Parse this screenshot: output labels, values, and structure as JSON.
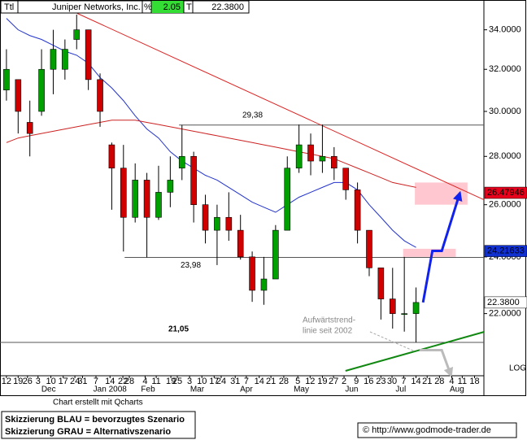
{
  "chart_data": {
    "type": "candlestick",
    "header": [
      "Ttl",
      "Juniper Networks, Inc.",
      "%",
      "2.05",
      "T",
      "22.3800"
    ],
    "log_scale": true,
    "x": [
      0,
      1,
      2,
      3,
      4,
      5,
      6,
      7,
      8,
      9,
      10,
      11,
      12,
      13,
      14,
      15,
      16,
      17,
      18,
      19,
      20,
      21,
      22,
      23,
      24,
      25,
      26,
      27,
      28,
      29,
      30,
      31,
      32,
      33,
      34,
      35
    ],
    "open": [
      31,
      31.5,
      29.5,
      30,
      32,
      32,
      33.5,
      34,
      31.5,
      28.5,
      27.5,
      25.5,
      27,
      25.5,
      26.5,
      27.5,
      28,
      26,
      25,
      25.5,
      25,
      24,
      22.8,
      23.2,
      25,
      27.5,
      28.5,
      27.8,
      28,
      27.5,
      26.6,
      25,
      23.6,
      22.5,
      22,
      22
    ],
    "high": [
      33,
      31.5,
      30.5,
      33,
      34,
      33.5,
      34.8,
      34,
      31.8,
      28.6,
      28.5,
      27.7,
      27.3,
      27.6,
      28,
      29.38,
      28.2,
      26.4,
      26,
      26.5,
      25.6,
      24.2,
      24,
      25.2,
      28,
      29.4,
      29,
      29.4,
      28.4,
      27.5,
      26.9,
      25,
      23.6,
      23.6,
      24,
      22.9
    ],
    "low": [
      30.5,
      29,
      28,
      29.8,
      30.8,
      31.5,
      33,
      31,
      29.3,
      25.8,
      24.2,
      25.3,
      23.98,
      25.4,
      25.9,
      27,
      25.3,
      24.5,
      23.7,
      24.6,
      23.9,
      22.4,
      22.3,
      23.2,
      25,
      27.3,
      27.2,
      27.3,
      27,
      26.2,
      24.5,
      23.3,
      21.8,
      21.5,
      21.4,
      21.05
    ],
    "close": [
      32,
      30,
      29,
      32,
      33,
      33,
      34,
      31.5,
      30,
      27.5,
      25.5,
      27,
      25.5,
      26.5,
      27,
      28,
      26,
      25,
      25.5,
      25,
      24,
      22.8,
      23.2,
      25,
      27.5,
      28.5,
      27.8,
      28,
      27.5,
      26.6,
      25,
      23.6,
      22.5,
      22,
      22,
      22.38
    ],
    "up_color": "#00a000",
    "down_color": "#d00000",
    "moving_averages": [
      {
        "color": "#2233cc",
        "values": [
          34.6,
          34.0,
          33.7,
          33.5,
          33.2,
          32.9,
          32.7,
          32.3,
          31.6,
          31.1,
          30.5,
          29.8,
          29.2,
          28.8,
          28.2,
          27.8,
          27.5,
          27.2,
          27.0,
          26.7,
          26.4,
          26.1,
          25.9,
          25.7,
          26.0,
          26.3,
          26.5,
          26.7,
          26.9,
          26.9,
          26.6,
          26.0,
          25.5,
          25.0,
          24.6,
          24.35
        ]
      },
      {
        "color": "#cc2222",
        "values": [
          28.6,
          28.8,
          28.9,
          29.0,
          29.1,
          29.2,
          29.3,
          29.4,
          29.5,
          29.6,
          29.6,
          29.6,
          29.5,
          29.4,
          29.3,
          29.2,
          29.1,
          29.0,
          28.9,
          28.8,
          28.7,
          28.6,
          28.5,
          28.4,
          28.3,
          28.2,
          28.1,
          28.0,
          27.9,
          27.7,
          27.5,
          27.3,
          27.1,
          26.9,
          26.8,
          26.7
        ]
      }
    ],
    "xlim": [
      -0.55,
      40.8
    ],
    "ylim": [
      20,
      34.8
    ],
    "yticks": [
      {
        "value": 22,
        "label": "22.0000"
      },
      {
        "value": 24,
        "label": "24.0000"
      },
      {
        "value": 26,
        "label": "26.0000"
      },
      {
        "value": 28,
        "label": "28.0000"
      },
      {
        "value": 30,
        "label": "30.0000"
      },
      {
        "value": 32,
        "label": "32.0000"
      },
      {
        "value": 34,
        "label": "34.0000"
      }
    ],
    "xticks": [
      {
        "value": 0,
        "label": "12"
      },
      {
        "value": 1,
        "label": "19"
      },
      {
        "value": 1.8,
        "label": "26"
      },
      {
        "value": 2.7,
        "label": "3"
      },
      {
        "value": 3.8,
        "label": "10"
      },
      {
        "value": 4.85,
        "label": "17"
      },
      {
        "value": 5.85,
        "label": "24"
      },
      {
        "value": 6.5,
        "label": "31"
      },
      {
        "value": 7.65,
        "label": "7"
      },
      {
        "value": 8.85,
        "label": "14"
      },
      {
        "value": 9.95,
        "label": "22"
      },
      {
        "value": 10.5,
        "label": "28"
      },
      {
        "value": 11.85,
        "label": "4"
      },
      {
        "value": 12.8,
        "label": "11"
      },
      {
        "value": 14.05,
        "label": "19"
      },
      {
        "value": 14.6,
        "label": "25"
      },
      {
        "value": 15.65,
        "label": "3"
      },
      {
        "value": 16.7,
        "label": "10"
      },
      {
        "value": 17.75,
        "label": "17"
      },
      {
        "value": 18.35,
        "label": "24"
      },
      {
        "value": 19.55,
        "label": "31"
      },
      {
        "value": 20.5,
        "label": "7"
      },
      {
        "value": 21.6,
        "label": "14"
      },
      {
        "value": 22.6,
        "label": "21"
      },
      {
        "value": 23.7,
        "label": "28"
      },
      {
        "value": 24.9,
        "label": "5"
      },
      {
        "value": 25.95,
        "label": "12"
      },
      {
        "value": 27,
        "label": "19"
      },
      {
        "value": 27.95,
        "label": "27"
      },
      {
        "value": 28.85,
        "label": "2"
      },
      {
        "value": 29.9,
        "label": "9"
      },
      {
        "value": 30.95,
        "label": "16"
      },
      {
        "value": 32,
        "label": "23"
      },
      {
        "value": 32.95,
        "label": "30"
      },
      {
        "value": 33.95,
        "label": "7"
      },
      {
        "value": 35,
        "label": "14"
      },
      {
        "value": 35.95,
        "label": "21"
      },
      {
        "value": 37,
        "label": "28"
      },
      {
        "value": 38.05,
        "label": "4"
      },
      {
        "value": 38.95,
        "label": "11"
      },
      {
        "value": 40,
        "label": "18"
      }
    ],
    "months": [
      {
        "value": 3.6,
        "label": "Dec"
      },
      {
        "value": 8.85,
        "label": "Jan 2008"
      },
      {
        "value": 12.1,
        "label": "Feb"
      },
      {
        "value": 16.3,
        "label": "Mar"
      },
      {
        "value": 20.5,
        "label": "Apr"
      },
      {
        "value": 25.2,
        "label": "May"
      },
      {
        "value": 29.5,
        "label": "Jun"
      },
      {
        "value": 33.7,
        "label": "Jul"
      },
      {
        "value": 38.5,
        "label": "Aug"
      }
    ],
    "levels": [
      {
        "value": 29.38,
        "label": "29,38",
        "from": 14.75
      },
      {
        "value": 23.98,
        "label": "23,98",
        "from": 10.1
      },
      {
        "value": 21.05,
        "label": "21,05",
        "from": -0.55
      }
    ],
    "trendlines": [
      {
        "color": "#dd2222",
        "points": [
          [
            6.04,
            34.87
          ],
          [
            40.8,
            26.2
          ]
        ]
      },
      {
        "color": "#118811",
        "points": [
          [
            28.97,
            20.15
          ],
          [
            40.8,
            21.39
          ]
        ]
      }
    ],
    "zones": [
      {
        "x": [
          34.9,
          39.4
        ],
        "y": [
          26.0,
          26.9
        ]
      },
      {
        "x": [
          33.9,
          38.4
        ],
        "y": [
          24.0,
          24.3
        ]
      }
    ],
    "scenarios": [
      {
        "color": "#1122ee",
        "points": [
          [
            35.6,
            22.38
          ],
          [
            36.4,
            24.22
          ],
          [
            37.2,
            24.22
          ],
          [
            38.75,
            26.48
          ]
        ]
      },
      {
        "color": "#bbbbbb",
        "points": [
          [
            35.3,
            20.8
          ],
          [
            37.2,
            20.8
          ],
          [
            38.0,
            20.0
          ]
        ]
      }
    ],
    "price_labels": [
      {
        "value": 26.47946,
        "bg": "#e8001c",
        "fg": "#ffffff"
      },
      {
        "value": 24.21633,
        "bg": "#1030d0",
        "fg": "#ffffff"
      },
      {
        "value": 22.38,
        "label": "22.3800",
        "bg": "#ffffff",
        "fg": "#000000"
      }
    ],
    "annotation": [
      "Aufwärtstrend-",
      "linie seit 2002"
    ],
    "scale_label": "LOG",
    "credit": "Chart erstellt mit Qcharts",
    "legend": [
      "Skizzierung BLAU = bevorzugtes Szenario",
      "Skizzierung GRAU = Alternativszenario"
    ],
    "source": "© http://www.godmode-trader.de"
  }
}
